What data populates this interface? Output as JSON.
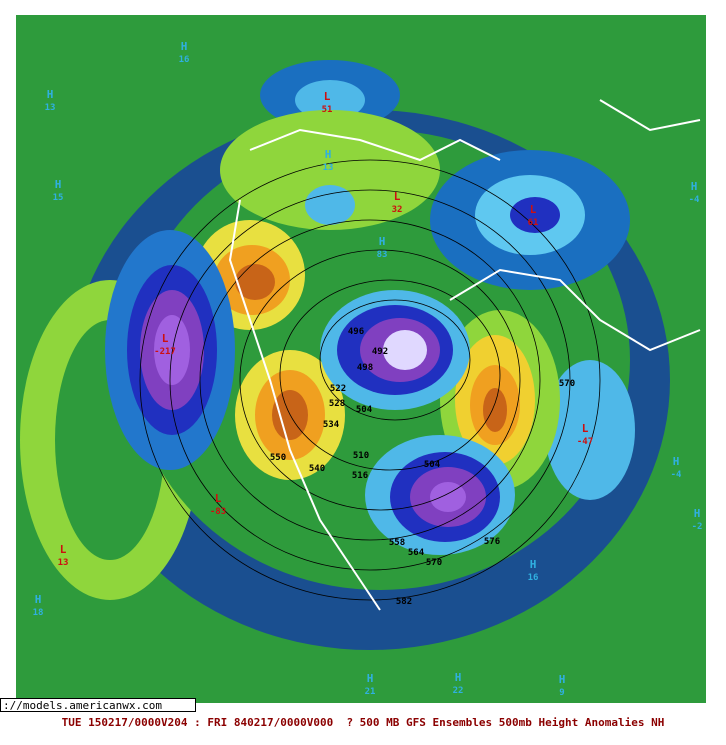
{
  "url": "://models.americanwx.com",
  "caption": "TUE 150217/0000V204 : FRI 840217/0000V000  ? 500 MB GFS Ensembles 500mb Height Anomalies NH",
  "centers": [
    {
      "letter": "H",
      "value": 13
    },
    {
      "letter": "H",
      "value": 15
    },
    {
      "letter": "H",
      "value": 16
    },
    {
      "letter": "L",
      "value": 51
    },
    {
      "letter": "H",
      "value": 13
    },
    {
      "letter": "L",
      "value": 32
    },
    {
      "letter": "H",
      "value": 83
    },
    {
      "letter": "H",
      "value": -4
    },
    {
      "letter": "L",
      "value": 61
    },
    {
      "letter": "L",
      "value": -47
    },
    {
      "letter": "H",
      "value": -4
    },
    {
      "letter": "H",
      "value": -2
    },
    {
      "letter": "L",
      "value": -217
    },
    {
      "letter": "L",
      "value": -83
    },
    {
      "letter": "L",
      "value": 13
    },
    {
      "letter": "H",
      "value": 18
    },
    {
      "letter": "H",
      "value": 16
    },
    {
      "letter": "H",
      "value": 21
    },
    {
      "letter": "H",
      "value": 22
    },
    {
      "letter": "H",
      "value": 9
    }
  ],
  "contour_labels": [
    496,
    492,
    498,
    522,
    528,
    534,
    504,
    550,
    540,
    510,
    516,
    504,
    570,
    576,
    564,
    570,
    558,
    582
  ]
}
